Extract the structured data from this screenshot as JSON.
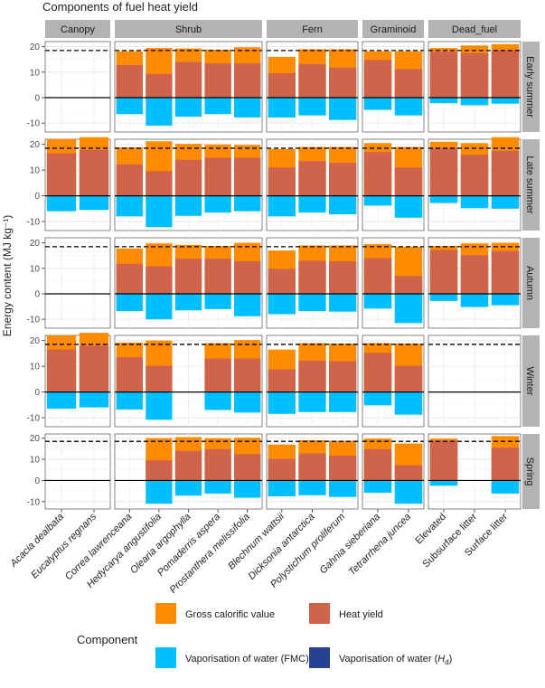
{
  "chart_data": {
    "type": "bar",
    "title": "Components of fuel heat yield",
    "ylabel": "Energy content (MJ kg⁻¹)",
    "ylim": [
      -13.5,
      22
    ],
    "yticks": [
      -10,
      0,
      10,
      20
    ],
    "reference_line": 18.5,
    "legend": {
      "title": "Component",
      "entries": [
        {
          "key": "gcv",
          "label": "Gross calorific value",
          "color": "#FF8C00"
        },
        {
          "key": "hy",
          "label": "Heat yield",
          "color": "#D0634B"
        },
        {
          "key": "fmc",
          "label": "Vaporisation of water (FMC)",
          "color": "#00BFFF"
        },
        {
          "key": "hd",
          "label": "Vaporisation of water (Hd)",
          "color": "#26418F",
          "main": "Vaporisation of water (",
          "sub": "d",
          "close": ")"
        }
      ]
    },
    "groups": [
      {
        "name": "Canopy",
        "species": [
          "Acacia dealbata",
          "Eucalyptus regnans"
        ]
      },
      {
        "name": "Shrub",
        "species": [
          "Correa lawrenceana",
          "Hedycarya angustifolia",
          "Olearia argophylla",
          "Pomaderris aspera",
          "Prostanthera melissifolia"
        ]
      },
      {
        "name": "Fern",
        "species": [
          "Blechnum wattsii",
          "Dicksonia antarctica",
          "Polystichum proliferum"
        ]
      },
      {
        "name": "Graminoid",
        "species": [
          "Gahnia sieberiana",
          "Tetrarrhena juncea"
        ]
      },
      {
        "name": "Dead_fuel",
        "species": [
          "Elevated",
          "Subsurface litter",
          "Surface litter"
        ]
      }
    ],
    "seasons": [
      {
        "name": "Early summer",
        "values": [
          null,
          null,
          {
            "gcv": 18.2,
            "hy": 12.8,
            "fmc": -6.5
          },
          {
            "gcv": 19.5,
            "hy": 9.3,
            "fmc": -11.0
          },
          {
            "gcv": 19.3,
            "hy": 14.0,
            "fmc": -7.5
          },
          {
            "gcv": 18.8,
            "hy": 13.5,
            "fmc": -6.5
          },
          {
            "gcv": 19.8,
            "hy": 13.5,
            "fmc": -7.8
          },
          {
            "gcv": 16.0,
            "hy": 9.6,
            "fmc": -7.8
          },
          {
            "gcv": 19.0,
            "hy": 13.2,
            "fmc": -7.0
          },
          {
            "gcv": 19.0,
            "hy": 11.8,
            "fmc": -8.8
          },
          {
            "gcv": 18.2,
            "hy": 14.8,
            "fmc": -4.8
          },
          {
            "gcv": 18.2,
            "hy": 11.2,
            "fmc": -7.0
          },
          {
            "gcv": 19.5,
            "hy": 18.0,
            "fmc": -2.2
          },
          {
            "gcv": 20.5,
            "hy": 17.5,
            "fmc": -3.0
          },
          {
            "gcv": 21.0,
            "hy": 18.5,
            "fmc": -2.4
          }
        ]
      },
      {
        "name": "Late summer",
        "values": [
          {
            "gcv": 22.0,
            "hy": 16.5,
            "fmc": -6.0
          },
          {
            "gcv": 22.8,
            "hy": 17.8,
            "fmc": -5.5
          },
          {
            "gcv": 18.8,
            "hy": 12.2,
            "fmc": -8.0
          },
          {
            "gcv": 21.2,
            "hy": 9.6,
            "fmc": -12.2
          },
          {
            "gcv": 20.2,
            "hy": 14.0,
            "fmc": -7.8
          },
          {
            "gcv": 20.0,
            "hy": 14.8,
            "fmc": -6.5
          },
          {
            "gcv": 19.8,
            "hy": 14.8,
            "fmc": -6.0
          },
          {
            "gcv": 18.2,
            "hy": 11.0,
            "fmc": -8.0
          },
          {
            "gcv": 19.0,
            "hy": 13.5,
            "fmc": -6.5
          },
          {
            "gcv": 19.0,
            "hy": 12.8,
            "fmc": -7.2
          },
          {
            "gcv": 20.5,
            "hy": 17.0,
            "fmc": -3.8
          },
          {
            "gcv": 19.0,
            "hy": 11.0,
            "fmc": -8.5
          },
          {
            "gcv": 21.0,
            "hy": 18.5,
            "fmc": -2.8
          },
          {
            "gcv": 20.5,
            "hy": 16.0,
            "fmc": -4.8
          },
          {
            "gcv": 22.8,
            "hy": 17.5,
            "fmc": -5.0
          }
        ]
      },
      {
        "name": "Autumn",
        "values": [
          null,
          null,
          {
            "gcv": 17.8,
            "hy": 11.8,
            "fmc": -6.8
          },
          {
            "gcv": 19.8,
            "hy": 10.8,
            "fmc": -10.0
          },
          {
            "gcv": 19.2,
            "hy": 13.8,
            "fmc": -6.5
          },
          {
            "gcv": 18.8,
            "hy": 13.8,
            "fmc": -6.0
          },
          {
            "gcv": 20.0,
            "hy": 12.8,
            "fmc": -8.8
          },
          {
            "gcv": 17.0,
            "hy": 9.8,
            "fmc": -8.0
          },
          {
            "gcv": 19.0,
            "hy": 13.0,
            "fmc": -6.8
          },
          {
            "gcv": 19.0,
            "hy": 12.8,
            "fmc": -7.0
          },
          {
            "gcv": 19.5,
            "hy": 14.0,
            "fmc": -5.8
          },
          {
            "gcv": 18.5,
            "hy": 7.0,
            "fmc": -11.5
          },
          {
            "gcv": 18.8,
            "hy": 17.2,
            "fmc": -2.8
          },
          {
            "gcv": 19.8,
            "hy": 15.2,
            "fmc": -5.2
          },
          {
            "gcv": 20.0,
            "hy": 16.8,
            "fmc": -4.5
          }
        ]
      },
      {
        "name": "Winter",
        "values": [
          {
            "gcv": 22.0,
            "hy": 16.5,
            "fmc": -6.5
          },
          {
            "gcv": 23.0,
            "hy": 18.0,
            "fmc": -6.0
          },
          {
            "gcv": 19.2,
            "hy": 13.5,
            "fmc": -6.8
          },
          {
            "gcv": 20.0,
            "hy": 10.2,
            "fmc": -10.8
          },
          null,
          {
            "gcv": 19.0,
            "hy": 13.0,
            "fmc": -7.0
          },
          {
            "gcv": 20.2,
            "hy": 13.0,
            "fmc": -8.0
          },
          {
            "gcv": 16.5,
            "hy": 8.8,
            "fmc": -8.5
          },
          {
            "gcv": 19.0,
            "hy": 12.2,
            "fmc": -7.8
          },
          {
            "gcv": 18.8,
            "hy": 12.0,
            "fmc": -7.8
          },
          {
            "gcv": 19.0,
            "hy": 15.2,
            "fmc": -5.2
          },
          {
            "gcv": 18.8,
            "hy": 10.2,
            "fmc": -8.8
          },
          null,
          null,
          null
        ]
      },
      {
        "name": "Spring",
        "values": [
          null,
          null,
          null,
          {
            "gcv": 20.0,
            "hy": 9.5,
            "fmc": -11.0
          },
          {
            "gcv": 20.5,
            "hy": 14.0,
            "fmc": -7.2
          },
          {
            "gcv": 20.0,
            "hy": 14.8,
            "fmc": -6.2
          },
          {
            "gcv": 20.2,
            "hy": 12.5,
            "fmc": -8.2
          },
          {
            "gcv": 17.0,
            "hy": 10.2,
            "fmc": -7.5
          },
          {
            "gcv": 19.0,
            "hy": 12.8,
            "fmc": -7.0
          },
          {
            "gcv": 18.8,
            "hy": 11.8,
            "fmc": -7.8
          },
          {
            "gcv": 19.8,
            "hy": 14.8,
            "fmc": -5.8
          },
          {
            "gcv": 17.5,
            "hy": 7.2,
            "fmc": -11.0
          },
          {
            "gcv": 19.8,
            "hy": 18.8,
            "fmc": -2.5
          },
          null,
          {
            "gcv": 21.0,
            "hy": 15.5,
            "fmc": -6.2
          }
        ]
      }
    ]
  }
}
